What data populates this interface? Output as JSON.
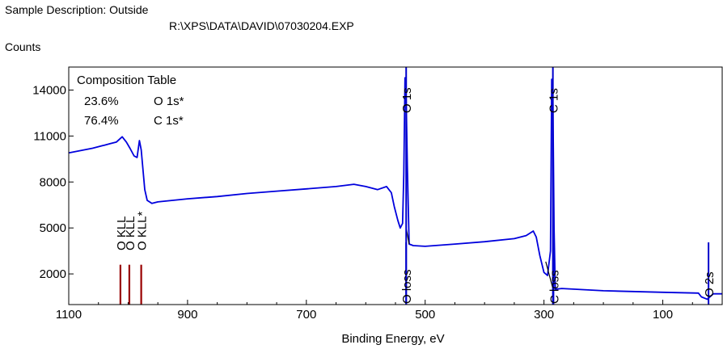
{
  "header": {
    "sample_line": "Sample Description: Outside",
    "file_path": "R:\\XPS\\DATA\\DAVID\\07030204.EXP"
  },
  "chart_data": {
    "type": "line",
    "ylabel": "Counts",
    "xlabel": "Binding Energy, eV",
    "xlim": [
      1100,
      0
    ],
    "ylim": [
      0,
      15500
    ],
    "x_reversed": true,
    "x_ticks": [
      1100,
      900,
      700,
      500,
      300,
      100
    ],
    "y_ticks": [
      2000,
      5000,
      8000,
      11000,
      14000
    ],
    "grid": false,
    "composition_table": {
      "title": "Composition Table",
      "rows": [
        {
          "percent": "23.6%",
          "peak": "O 1s*"
        },
        {
          "percent": "76.4%",
          "peak": "C 1s*"
        }
      ]
    },
    "series": [
      {
        "color": "#0000dd",
        "points": [
          [
            1100,
            9900
          ],
          [
            1080,
            10050
          ],
          [
            1060,
            10200
          ],
          [
            1040,
            10400
          ],
          [
            1030,
            10500
          ],
          [
            1020,
            10600
          ],
          [
            1010,
            10950
          ],
          [
            1003,
            10600
          ],
          [
            997,
            10200
          ],
          [
            990,
            9700
          ],
          [
            985,
            9600
          ],
          [
            981,
            10700
          ],
          [
            978,
            10100
          ],
          [
            975,
            8800
          ],
          [
            972,
            7500
          ],
          [
            968,
            6800
          ],
          [
            960,
            6600
          ],
          [
            950,
            6700
          ],
          [
            900,
            6900
          ],
          [
            850,
            7050
          ],
          [
            800,
            7250
          ],
          [
            750,
            7400
          ],
          [
            700,
            7550
          ],
          [
            650,
            7700
          ],
          [
            620,
            7850
          ],
          [
            600,
            7700
          ],
          [
            580,
            7500
          ],
          [
            565,
            7700
          ],
          [
            557,
            7300
          ],
          [
            552,
            6400
          ],
          [
            546,
            5500
          ],
          [
            542,
            5000
          ],
          [
            538,
            5300
          ],
          [
            536,
            8500
          ],
          [
            534,
            14800
          ],
          [
            532,
            13500
          ],
          [
            530,
            9000
          ],
          [
            527,
            3950
          ],
          [
            520,
            3850
          ],
          [
            500,
            3800
          ],
          [
            450,
            3950
          ],
          [
            400,
            4100
          ],
          [
            350,
            4300
          ],
          [
            330,
            4500
          ],
          [
            318,
            4800
          ],
          [
            313,
            4400
          ],
          [
            307,
            3200
          ],
          [
            300,
            2100
          ],
          [
            294,
            1900
          ],
          [
            289,
            3500
          ],
          [
            287,
            14700
          ],
          [
            285,
            13000
          ],
          [
            283,
            5000
          ],
          [
            281,
            1000
          ],
          [
            270,
            1050
          ],
          [
            200,
            900
          ],
          [
            100,
            800
          ],
          [
            40,
            750
          ],
          [
            35,
            500
          ],
          [
            25,
            350
          ],
          [
            15,
            700
          ],
          [
            0,
            700
          ]
        ]
      },
      {
        "color": "#000000",
        "points": [
          [
            532,
            5000
          ],
          [
            527,
            3950
          ]
        ]
      },
      {
        "color": "#000000",
        "points": [
          [
            297,
            2800
          ],
          [
            284,
            900
          ]
        ]
      }
    ],
    "markers": [
      {
        "label": "O 1s",
        "x": 532,
        "color": "#0000cc",
        "value": 14500
      },
      {
        "label": "C 1s",
        "x": 285,
        "color": "#0000cc",
        "value": 14500
      },
      {
        "label": "O loss",
        "x": 532,
        "color": "#0000cc",
        "value": 3900
      },
      {
        "label": "C loss",
        "x": 284,
        "color": "#0000cc",
        "value": 900
      },
      {
        "label": "O 2s",
        "x": 23,
        "color": "#0000cc",
        "value": 700
      },
      {
        "label": "O KLL",
        "x": 1013,
        "color": "#990000",
        "value": 2600
      },
      {
        "label": "O KLL",
        "x": 998,
        "color": "#990000",
        "value": 2600
      },
      {
        "label": "O KLL*",
        "x": 978,
        "color": "#990000",
        "value": 2600
      }
    ]
  }
}
